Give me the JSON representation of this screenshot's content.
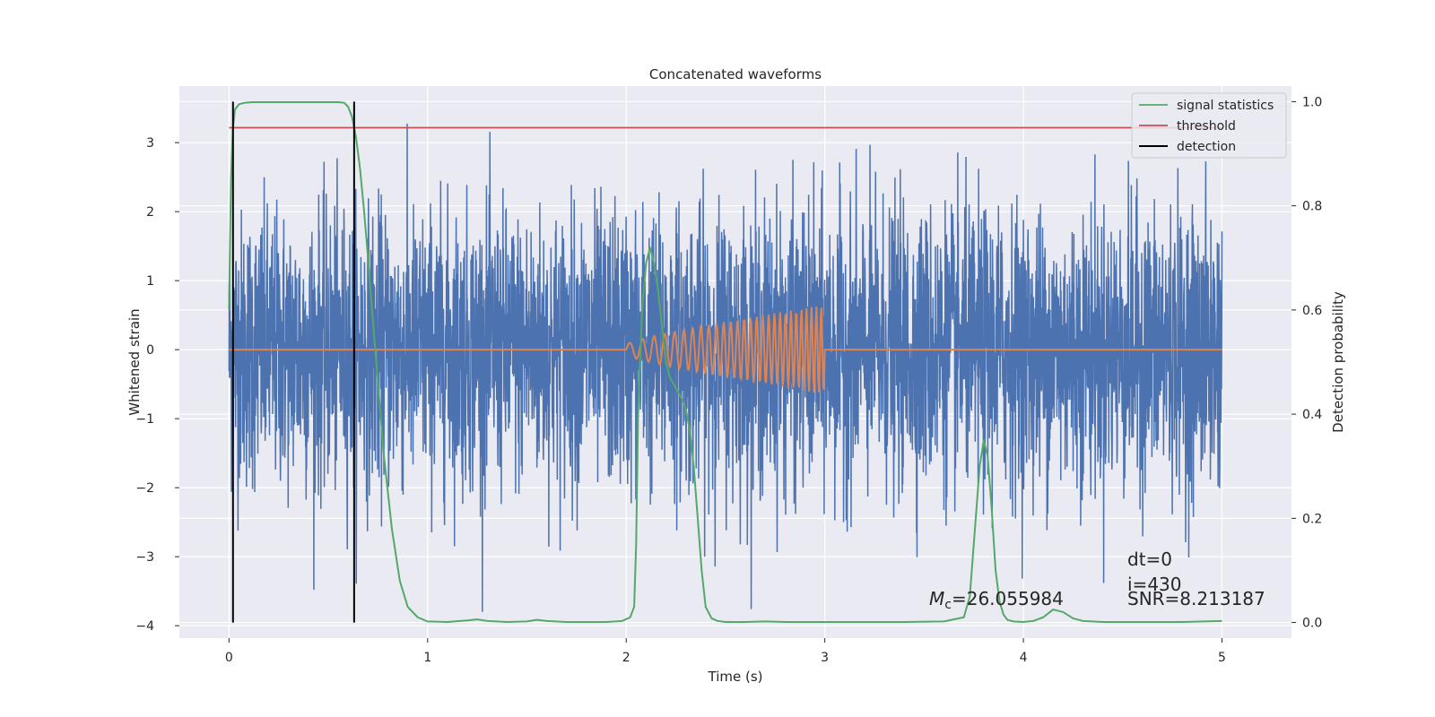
{
  "chart_data": {
    "type": "line",
    "title": "Concatenated waveforms",
    "xlabel": "Time (s)",
    "ylabel_left": "Whitened strain",
    "ylabel_right": "Detection probability",
    "xlim": [
      -0.25,
      5.35
    ],
    "ylim_left": [
      -4.18,
      3.82
    ],
    "ylim_right": [
      -0.03,
      1.03
    ],
    "x_ticks": [
      0,
      1,
      2,
      3,
      4,
      5
    ],
    "y_ticks_left": [
      -4,
      -3,
      -2,
      -1,
      0,
      1,
      2,
      3
    ],
    "y_ticks_right": [
      0.0,
      0.2,
      0.4,
      0.6,
      0.8,
      1.0
    ],
    "grid": true,
    "legend_position": "top-right",
    "colors": {
      "background": "#eaeaf2",
      "grid": "#ffffff",
      "strain": "#4c72b0",
      "template": "#dd8452",
      "signal_statistics": "#55a868",
      "threshold": "#c44e52",
      "detection": "#000000"
    },
    "series": [
      {
        "name": "signal statistics",
        "axis": "right",
        "x": [
          0.0,
          0.01,
          0.02,
          0.03,
          0.05,
          0.08,
          0.12,
          0.2,
          0.4,
          0.55,
          0.58,
          0.6,
          0.62,
          0.64,
          0.66,
          0.68,
          0.7,
          0.72,
          0.75,
          0.78,
          0.82,
          0.86,
          0.9,
          0.95,
          1.0,
          1.1,
          1.2,
          1.25,
          1.3,
          1.4,
          1.5,
          1.55,
          1.6,
          1.7,
          1.8,
          1.9,
          1.98,
          2.02,
          2.04,
          2.05,
          2.06,
          2.08,
          2.1,
          2.12,
          2.14,
          2.16,
          2.18,
          2.2,
          2.22,
          2.25,
          2.28,
          2.3,
          2.32,
          2.34,
          2.36,
          2.38,
          2.4,
          2.43,
          2.46,
          2.5,
          2.6,
          2.7,
          2.8,
          3.0,
          3.2,
          3.4,
          3.6,
          3.7,
          3.73,
          3.76,
          3.78,
          3.8,
          3.82,
          3.84,
          3.86,
          3.88,
          3.9,
          3.92,
          3.95,
          4.0,
          4.05,
          4.1,
          4.15,
          4.2,
          4.25,
          4.3,
          4.4,
          4.6,
          4.8,
          5.0
        ],
        "y": [
          0.6,
          0.85,
          0.95,
          0.985,
          0.995,
          0.998,
          0.999,
          0.999,
          0.999,
          0.999,
          0.998,
          0.99,
          0.97,
          0.93,
          0.87,
          0.79,
          0.7,
          0.6,
          0.46,
          0.32,
          0.18,
          0.08,
          0.03,
          0.01,
          0.002,
          0.001,
          0.004,
          0.006,
          0.003,
          0.001,
          0.002,
          0.005,
          0.003,
          0.001,
          0.001,
          0.001,
          0.003,
          0.01,
          0.03,
          0.15,
          0.4,
          0.6,
          0.69,
          0.72,
          0.69,
          0.64,
          0.57,
          0.5,
          0.47,
          0.45,
          0.43,
          0.41,
          0.37,
          0.3,
          0.2,
          0.1,
          0.03,
          0.008,
          0.003,
          0.001,
          0.001,
          0.002,
          0.001,
          0.001,
          0.001,
          0.001,
          0.002,
          0.01,
          0.05,
          0.2,
          0.3,
          0.35,
          0.32,
          0.22,
          0.1,
          0.04,
          0.015,
          0.005,
          0.002,
          0.001,
          0.003,
          0.01,
          0.025,
          0.02,
          0.008,
          0.003,
          0.001,
          0.001,
          0.001,
          0.003
        ]
      },
      {
        "name": "threshold",
        "axis": "right",
        "x": [
          0,
          5
        ],
        "y": [
          0.95,
          0.95
        ]
      },
      {
        "name": "detection",
        "axis": "right",
        "x": [
          0.02,
          0.63
        ],
        "y": [
          0,
          1
        ]
      }
    ],
    "strain_noise": {
      "axis": "left",
      "x_range": [
        0,
        5
      ],
      "typical_amplitude": 1.0,
      "peak_range": [
        -3.8,
        3.5
      ]
    },
    "template_waveform": {
      "axis": "left",
      "start_x": 2.0,
      "end_x": 3.0,
      "max_amplitude": 0.65
    },
    "annotations": [
      {
        "text": "dt=0"
      },
      {
        "text": "i=430"
      },
      {
        "prefix": "M",
        "sub": "c",
        "text": "=26.055984"
      },
      {
        "text": "SNR=8.213187"
      }
    ]
  }
}
